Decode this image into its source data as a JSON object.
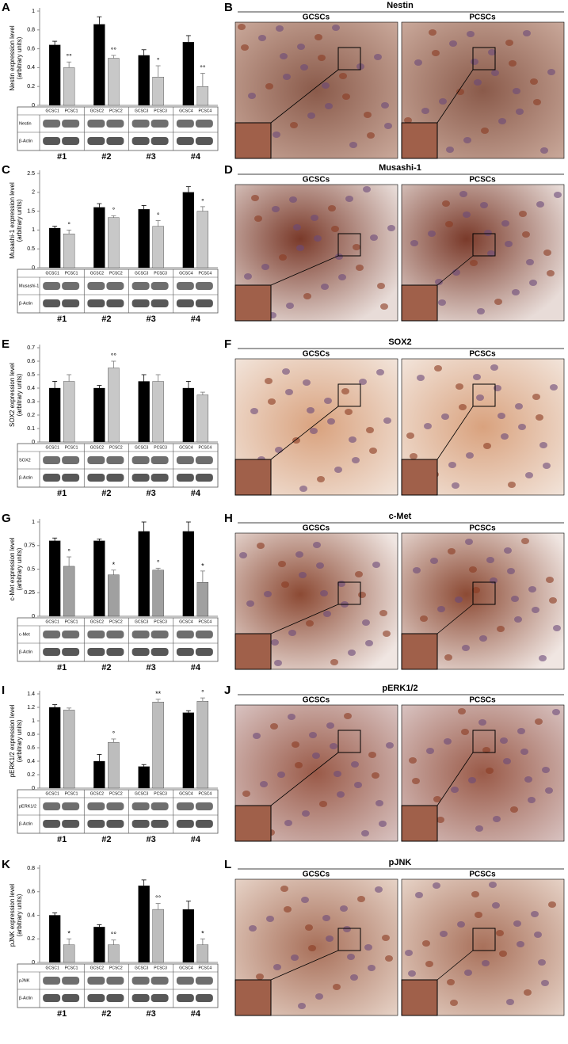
{
  "chart_data": [
    {
      "type": "bar",
      "panel": "A",
      "ylabel": [
        "Nestin expression level",
        "(arbitrary units)"
      ],
      "categories": [
        "#1",
        "#2",
        "#3",
        "#4"
      ],
      "lane_labels": [
        [
          "GCSC1",
          "PCSC1"
        ],
        [
          "GCSC2",
          "PCSC2"
        ],
        [
          "GCSC3",
          "PCSC3"
        ],
        [
          "GCSC4",
          "PCSC4"
        ]
      ],
      "blot_labels": [
        "Nestin",
        "β-Actin"
      ],
      "ylim": [
        0,
        1
      ],
      "yticks": [
        0,
        0.2,
        0.4,
        0.6,
        0.8,
        1
      ],
      "series": [
        {
          "color": "#000000",
          "values": [
            0.64,
            0.86,
            0.53,
            0.67
          ],
          "errors": [
            0.04,
            0.08,
            0.06,
            0.07
          ]
        },
        {
          "color": "#c8c8c8",
          "values": [
            0.4,
            0.5,
            0.3,
            0.2
          ],
          "errors": [
            0.06,
            0.03,
            0.12,
            0.14
          ]
        }
      ],
      "annotations": [
        "°°",
        "°°",
        "°",
        "°°"
      ]
    },
    {
      "type": "bar",
      "panel": "C",
      "ylabel": [
        "Musashi-1 expression level",
        "(arbitrary units)"
      ],
      "categories": [
        "#1",
        "#2",
        "#3",
        "#4"
      ],
      "lane_labels": [
        [
          "GCSC1",
          "PCSC1"
        ],
        [
          "GCSC2",
          "PCSC2"
        ],
        [
          "GCSC3",
          "PCSC3"
        ],
        [
          "GCSC4",
          "PCSC4"
        ]
      ],
      "blot_labels": [
        "Musashi-1",
        "β-Actin"
      ],
      "ylim": [
        0,
        2.5
      ],
      "yticks": [
        0,
        0.5,
        1,
        1.5,
        2,
        2.5
      ],
      "series": [
        {
          "color": "#000000",
          "values": [
            1.05,
            1.6,
            1.55,
            2.0
          ],
          "errors": [
            0.05,
            0.1,
            0.1,
            0.15
          ]
        },
        {
          "color": "#c8c8c8",
          "values": [
            0.9,
            1.33,
            1.1,
            1.5
          ],
          "errors": [
            0.1,
            0.05,
            0.15,
            0.12
          ]
        }
      ],
      "annotations": [
        "°",
        "°",
        "°",
        "°"
      ]
    },
    {
      "type": "bar",
      "panel": "E",
      "ylabel": [
        "SOX2 expression level",
        "(arbitrary units)"
      ],
      "categories": [
        "#1",
        "#2",
        "#3",
        "#4"
      ],
      "lane_labels": [
        [
          "GCSC1",
          "PCSC1"
        ],
        [
          "GCSC2",
          "PCSC2"
        ],
        [
          "GCSC3",
          "PCSC3"
        ],
        [
          "GCSC4",
          "PCSC4"
        ]
      ],
      "blot_labels": [
        "SOX2",
        "β-Actin"
      ],
      "ylim": [
        0,
        0.7
      ],
      "yticks": [
        0,
        0.1,
        0.2,
        0.3,
        0.4,
        0.5,
        0.6,
        0.7
      ],
      "series": [
        {
          "color": "#000000",
          "values": [
            0.4,
            0.4,
            0.45,
            0.4
          ],
          "errors": [
            0.05,
            0.02,
            0.05,
            0.05
          ]
        },
        {
          "color": "#c8c8c8",
          "values": [
            0.45,
            0.55,
            0.45,
            0.35
          ],
          "errors": [
            0.05,
            0.05,
            0.05,
            0.02
          ]
        }
      ],
      "annotations": [
        null,
        "°°",
        null,
        null
      ]
    },
    {
      "type": "bar",
      "panel": "G",
      "ylabel": [
        "c-Met expression level",
        "(arbitrary units)"
      ],
      "categories": [
        "#1",
        "#2",
        "#3",
        "#4"
      ],
      "lane_labels": [
        [
          "GCSC1",
          "PCSC1"
        ],
        [
          "GCSC2",
          "PCSC2"
        ],
        [
          "GCSC3",
          "PCSC3"
        ],
        [
          "GCSC4",
          "PCSC4"
        ]
      ],
      "blot_labels": [
        "c-Met",
        "β-Actin"
      ],
      "ylim": [
        0,
        1
      ],
      "yticks": [
        0,
        0.25,
        0.5,
        0.75,
        1
      ],
      "series": [
        {
          "color": "#000000",
          "values": [
            0.8,
            0.8,
            0.9,
            0.9
          ],
          "errors": [
            0.03,
            0.02,
            0.1,
            0.1
          ]
        },
        {
          "color": "#a0a0a0",
          "values": [
            0.53,
            0.44,
            0.49,
            0.36
          ],
          "errors": [
            0.1,
            0.05,
            0.02,
            0.12
          ]
        }
      ],
      "annotations": [
        "°",
        "*",
        "°",
        "*"
      ]
    },
    {
      "type": "bar",
      "panel": "I",
      "ylabel": [
        "pERK1/2 expression level",
        "(arbitrary units)"
      ],
      "categories": [
        "#1",
        "#2",
        "#3",
        "#4"
      ],
      "lane_labels": [
        [
          "GCSC1",
          "PCSC1"
        ],
        [
          "GCSC2",
          "PCSC2"
        ],
        [
          "GCSC3",
          "PCSC3"
        ],
        [
          "GCSC4",
          "PCSC4"
        ]
      ],
      "blot_labels": [
        "pERK1/2",
        "β-Actin"
      ],
      "ylim": [
        0,
        1.4
      ],
      "yticks": [
        0,
        0.2,
        0.4,
        0.6,
        0.8,
        1,
        1.2,
        1.4
      ],
      "series": [
        {
          "color": "#000000",
          "values": [
            1.2,
            0.4,
            0.32,
            1.12
          ],
          "errors": [
            0.04,
            0.1,
            0.03,
            0.03
          ]
        },
        {
          "color": "#bdbdbd",
          "values": [
            1.16,
            0.68,
            1.28,
            1.29
          ],
          "errors": [
            0.03,
            0.05,
            0.04,
            0.05
          ]
        }
      ],
      "annotations": [
        null,
        "°",
        "**",
        "°"
      ]
    },
    {
      "type": "bar",
      "panel": "K",
      "ylabel": [
        "pJNK expression level",
        "(arbitrary units)"
      ],
      "categories": [
        "#1",
        "#2",
        "#3",
        "#4"
      ],
      "lane_labels": [
        [
          "GCSC1",
          "PCSC1"
        ],
        [
          "GCSC2",
          "PCSC2"
        ],
        [
          "GCSC3",
          "PCSC3"
        ],
        [
          "GCSC4",
          "PCSC4"
        ]
      ],
      "blot_labels": [
        "pJNK",
        "β-Actin"
      ],
      "ylim": [
        0,
        0.8
      ],
      "yticks": [
        0,
        0.2,
        0.4,
        0.6,
        0.8
      ],
      "series": [
        {
          "color": "#000000",
          "values": [
            0.4,
            0.3,
            0.65,
            0.45
          ],
          "errors": [
            0.02,
            0.02,
            0.05,
            0.07
          ]
        },
        {
          "color": "#bdbdbd",
          "values": [
            0.15,
            0.15,
            0.45,
            0.15
          ],
          "errors": [
            0.05,
            0.04,
            0.05,
            0.05
          ]
        }
      ],
      "annotations": [
        "*",
        "°°",
        "°°",
        "*"
      ]
    }
  ],
  "images": [
    {
      "panel": "B",
      "title": "Nestin",
      "labels": [
        "GCSCs",
        "PCSCs"
      ]
    },
    {
      "panel": "D",
      "title": "Musashi-1",
      "labels": [
        "GCSCs",
        "PCSCs"
      ]
    },
    {
      "panel": "F",
      "title": "SOX2",
      "labels": [
        "GCSCs",
        "PCSCs"
      ]
    },
    {
      "panel": "H",
      "title": "c-Met",
      "labels": [
        "GCSCs",
        "PCSCs"
      ]
    },
    {
      "panel": "J",
      "title": "pERK1/2",
      "labels": [
        "GCSCs",
        "PCSCs"
      ]
    },
    {
      "panel": "L",
      "title": "pJNK",
      "labels": [
        "GCSCs",
        "PCSCs"
      ]
    }
  ]
}
